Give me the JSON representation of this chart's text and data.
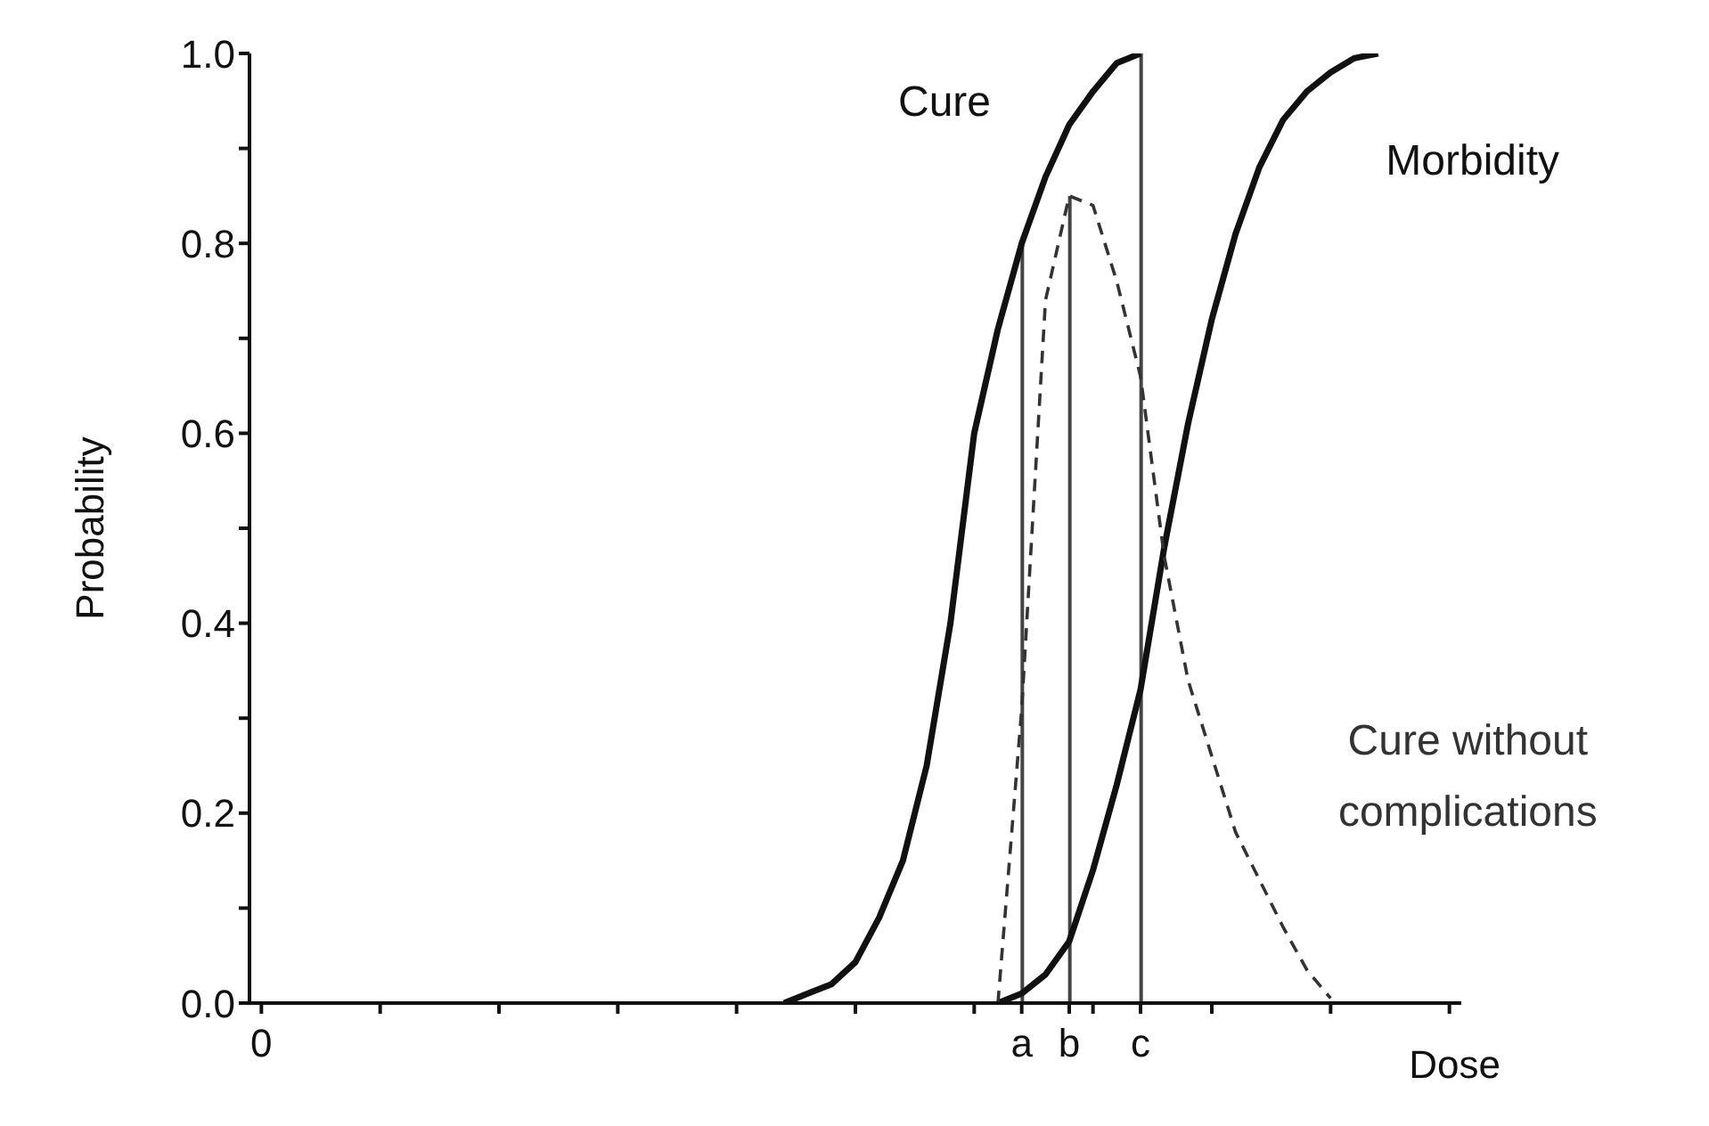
{
  "chart_data": {
    "type": "line",
    "ylabel": "Probability",
    "xlabel": "Dose",
    "categories": [
      "0",
      null,
      null,
      null,
      null,
      null,
      null,
      null,
      null,
      null,
      null,
      null,
      null,
      null,
      null,
      null,
      null,
      null,
      null,
      null,
      null,
      null,
      null,
      null,
      null,
      null,
      null,
      null,
      null,
      null,
      null,
      null,
      "a",
      null,
      "b",
      null,
      null,
      "c",
      null,
      null,
      null,
      null,
      null,
      null,
      null,
      null,
      null,
      null,
      null,
      null,
      null
    ],
    "ylim": [
      0,
      1
    ],
    "yticks": [
      {
        "value": 0,
        "label": "0.0"
      },
      {
        "value": 0.1,
        "label": null
      },
      {
        "value": 0.2,
        "label": "0.2"
      },
      {
        "value": 0.3,
        "label": null
      },
      {
        "value": 0.4,
        "label": "0.4"
      },
      {
        "value": 0.5,
        "label": null
      },
      {
        "value": 0.6,
        "label": "0.6"
      },
      {
        "value": 0.7,
        "label": null
      },
      {
        "value": 0.8,
        "label": "0.8"
      },
      {
        "value": 0.9,
        "label": null
      },
      {
        "value": 1,
        "label": "1.0"
      }
    ],
    "marker": "none",
    "series": [
      {
        "name": "Cure",
        "color": "#111111",
        "line_style": "solid",
        "values": [
          null,
          null,
          null,
          null,
          null,
          null,
          null,
          null,
          null,
          null,
          null,
          null,
          null,
          null,
          null,
          null,
          null,
          null,
          null,
          null,
          null,
          null,
          0,
          0.01,
          0.02,
          0.043,
          0.09,
          0.15,
          0.25,
          0.4,
          0.6,
          0.71,
          0.8,
          0.87,
          0.925,
          0.96,
          0.99,
          1.0,
          null,
          null,
          null,
          null,
          null,
          null,
          null,
          null,
          null,
          null,
          null,
          null,
          null
        ]
      },
      {
        "name": "Morbidity",
        "color": "#111111",
        "line_style": "solid",
        "values": [
          null,
          null,
          null,
          null,
          null,
          null,
          null,
          null,
          null,
          null,
          null,
          null,
          null,
          null,
          null,
          null,
          null,
          null,
          null,
          null,
          null,
          null,
          null,
          null,
          null,
          null,
          null,
          null,
          null,
          null,
          null,
          0,
          0.01,
          0.03,
          0.065,
          0.14,
          0.23,
          0.33,
          0.48,
          0.61,
          0.72,
          0.81,
          0.88,
          0.93,
          0.96,
          0.98,
          0.995,
          1.0,
          null,
          null,
          null
        ]
      },
      {
        "name": "Cure without complications",
        "color": "#333333",
        "line_style": "dashed",
        "values": [
          null,
          null,
          null,
          null,
          null,
          null,
          null,
          null,
          null,
          null,
          null,
          null,
          null,
          null,
          null,
          null,
          null,
          null,
          null,
          null,
          null,
          null,
          null,
          null,
          null,
          null,
          null,
          null,
          null,
          null,
          null,
          0,
          0.31,
          0.74,
          0.85,
          0.84,
          0.76,
          0.66,
          0.47,
          0.34,
          0.26,
          0.18,
          0.13,
          0.08,
          0.035,
          0.005,
          null,
          null,
          null,
          null,
          null
        ]
      },
      {
        "type": "bar",
        "color": "#444444",
        "values": [
          null,
          null,
          null,
          null,
          null,
          null,
          null,
          null,
          null,
          null,
          null,
          null,
          null,
          null,
          null,
          null,
          null,
          null,
          null,
          null,
          null,
          null,
          null,
          null,
          null,
          null,
          null,
          null,
          null,
          null,
          null,
          null,
          0.8,
          null,
          0.85,
          null,
          null,
          1.0,
          null,
          null,
          null,
          null,
          null,
          null,
          null,
          null,
          null,
          null,
          null,
          null,
          null
        ]
      }
    ]
  }
}
